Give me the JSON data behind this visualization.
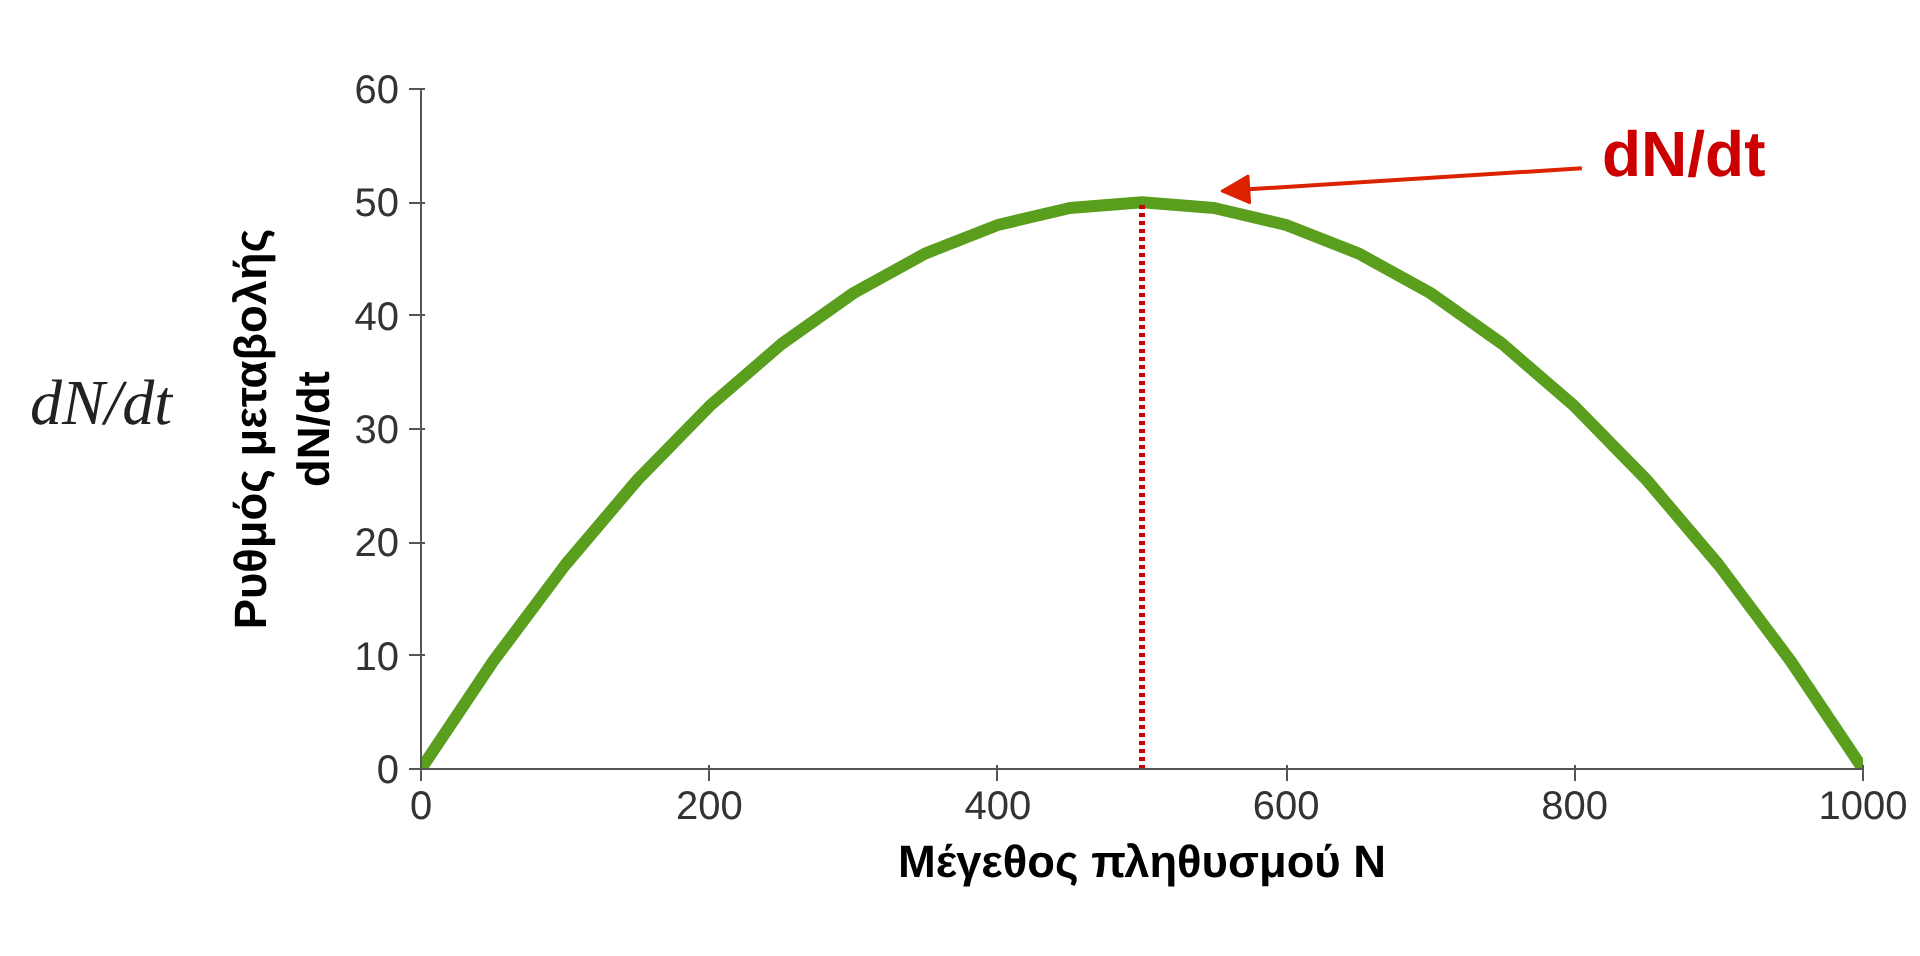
{
  "chart_data": {
    "type": "line",
    "xlabel": "Μέγεθος πληθυσμού Ν",
    "ylabel": "Ρυθμός μεταβολής\ndN/dt",
    "x": [
      0,
      50,
      100,
      150,
      200,
      250,
      300,
      350,
      400,
      450,
      500,
      550,
      600,
      650,
      700,
      750,
      800,
      850,
      900,
      950,
      1000
    ],
    "series": [
      {
        "color": "#5a9e1e",
        "values": [
          0,
          9.5,
          18,
          25.5,
          32,
          37.5,
          42,
          45.5,
          48,
          49.5,
          50,
          49.5,
          48,
          45.5,
          42,
          37.5,
          32,
          25.5,
          18,
          9.5,
          0
        ]
      }
    ],
    "xlim": [
      0,
      1000
    ],
    "ylim": [
      0,
      60
    ],
    "xticks": [
      0,
      200,
      400,
      600,
      800,
      1000
    ],
    "yticks": [
      0,
      10,
      20,
      30,
      40,
      50,
      60
    ],
    "grid": false,
    "marker": "none",
    "line_style": "solid",
    "ref_lines": [
      {
        "axis": "x",
        "value": 500,
        "color": "#cc0000",
        "line_style": "dotted"
      }
    ],
    "annotations": [
      "dN/dt",
      "dN/dt"
    ]
  }
}
